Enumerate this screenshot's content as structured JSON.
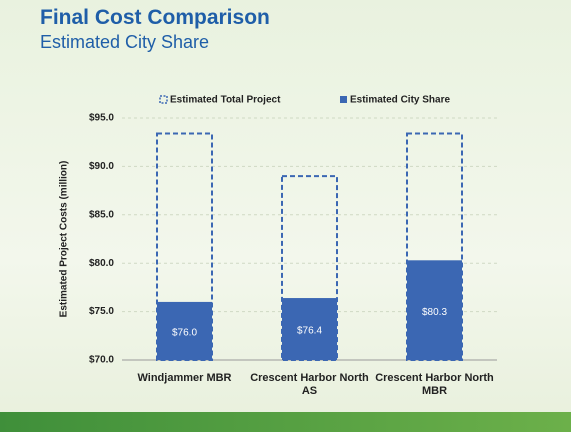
{
  "chart_data": {
    "type": "bar",
    "title": "Final Cost Comparison",
    "subtitle": "Estimated City Share",
    "y_label": "Estimated Project Costs (million)",
    "categories": [
      "Windjammer MBR",
      "Crescent Harbor North AS",
      "Crescent Harbor North MBR"
    ],
    "series": [
      {
        "name": "Estimated Total Project",
        "color": "#3b67b3",
        "style": "dashed",
        "values": [
          93.4,
          89.0,
          93.4
        ]
      },
      {
        "name": "Estimated City Share",
        "color": "#3b67b3",
        "style": "solid",
        "values": [
          76.0,
          76.4,
          80.3
        ],
        "value_labels": [
          "$76.0",
          "$76.4",
          "$80.3"
        ]
      }
    ],
    "ylim": [
      70,
      95
    ],
    "yticks": [
      {
        "value": 70,
        "label": "$70.0"
      },
      {
        "value": 75,
        "label": "$75.0"
      },
      {
        "value": 80,
        "label": "$80.0"
      },
      {
        "value": 85,
        "label": "$85.0"
      },
      {
        "value": 90,
        "label": "$90.0"
      },
      {
        "value": 95,
        "label": "$95.0"
      }
    ],
    "grid": true
  }
}
